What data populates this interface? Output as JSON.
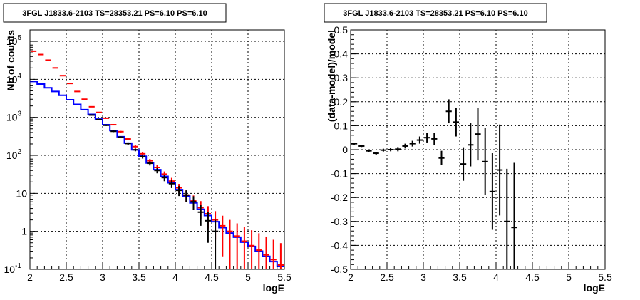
{
  "chart_data": [
    {
      "type": "line",
      "title": "3FGL J1833.6-2103 TS=28353.21 PS=6.10 PS=6.10",
      "xlabel": "logE",
      "ylabel": "Nb of counts",
      "xlim": [
        2,
        5.5
      ],
      "ylim": [
        0.1,
        200000
      ],
      "yscale": "log",
      "grid": true,
      "x_ticks": [
        "2",
        "2.5",
        "3",
        "3.5",
        "4",
        "4.5",
        "5",
        "5.5"
      ],
      "y_ticks": [
        {
          "value": 0.1,
          "label": "10",
          "exp": "-1"
        },
        {
          "value": 1,
          "label": "1",
          "exp": ""
        },
        {
          "value": 10,
          "label": "10",
          "exp": ""
        },
        {
          "value": 100,
          "label": "10",
          "exp": "2"
        },
        {
          "value": 1000,
          "label": "10",
          "exp": "3"
        },
        {
          "value": 10000,
          "label": "10",
          "exp": "4"
        },
        {
          "value": 100000,
          "label": "10",
          "exp": "5"
        }
      ],
      "bin_width": 0.1,
      "series": [
        {
          "color": "#0000ff",
          "style": "step",
          "x": [
            2.05,
            2.15,
            2.25,
            2.35,
            2.45,
            2.55,
            2.65,
            2.75,
            2.85,
            2.95,
            3.05,
            3.15,
            3.25,
            3.35,
            3.45,
            3.55,
            3.65,
            3.75,
            3.85,
            3.95,
            4.05,
            4.15,
            4.25,
            4.35,
            4.45,
            4.55,
            4.65,
            4.75,
            4.85,
            4.95,
            5.05,
            5.15,
            5.25,
            5.35,
            5.45
          ],
          "y": [
            8800,
            7500,
            6000,
            4800,
            3800,
            2900,
            2200,
            1600,
            1200,
            900,
            640,
            450,
            310,
            210,
            140,
            95,
            63,
            42,
            28,
            19,
            12.5,
            8.5,
            5.6,
            3.8,
            2.6,
            1.8,
            1.25,
            0.9,
            0.7,
            0.52,
            0.4,
            0.3,
            0.22,
            0.16,
            0.12
          ]
        },
        {
          "color": "#ff0000",
          "style": "errorbar",
          "x": [
            2.05,
            2.15,
            2.25,
            2.35,
            2.45,
            2.55,
            2.65,
            2.75,
            2.85,
            2.95,
            3.05,
            3.15,
            3.25,
            3.35,
            3.45,
            3.55,
            3.65,
            3.75,
            3.85,
            3.95,
            4.05,
            4.15,
            4.25,
            4.35,
            4.45,
            4.55,
            4.65,
            4.75,
            4.85,
            4.95,
            5.05,
            5.15,
            5.25,
            5.35,
            5.45
          ],
          "y": [
            55000,
            45000,
            32000,
            20000,
            12500,
            7800,
            4800,
            3000,
            1900,
            1350,
            950,
            640,
            420,
            270,
            170,
            110,
            72,
            48,
            32,
            21,
            14,
            9,
            6.3,
            4.2,
            2.9,
            2.0,
            1.4,
            1.0,
            0.75,
            0.55,
            0.42,
            0.32,
            0.24,
            0.18,
            0.13
          ],
          "err": [
            234,
            212,
            179,
            141,
            112,
            88,
            69,
            55,
            44,
            37,
            31,
            25,
            20,
            16,
            13,
            10,
            8.5,
            7,
            5.7,
            4.6,
            3.7,
            3,
            2.5,
            2.05,
            1.7,
            1.4,
            1.18,
            1.0,
            0.87,
            0.74,
            0.65,
            0.57,
            0.49,
            0.42,
            0.36
          ]
        },
        {
          "color": "#000000",
          "style": "errorbar",
          "x": [
            2.85,
            2.95,
            3.05,
            3.15,
            3.25,
            3.35,
            3.45,
            3.55,
            3.65,
            3.75,
            3.85,
            3.95,
            4.05,
            4.15,
            4.25,
            4.35,
            4.45,
            4.55
          ],
          "y": [
            1150,
            870,
            620,
            430,
            300,
            205,
            140,
            92,
            62,
            40,
            26,
            18,
            12,
            9,
            6,
            3.2,
            1.9,
            1.0
          ],
          "err": [
            34,
            29,
            25,
            21,
            17,
            14,
            12,
            9.6,
            7.9,
            6.3,
            5.1,
            4.2,
            3.5,
            3,
            2.4,
            1.8,
            1.4,
            1.0
          ]
        }
      ]
    },
    {
      "type": "scatter",
      "title": "3FGL J1833.6-2103 TS=28353.21 PS=6.10 PS=6.10",
      "xlabel": "logE",
      "ylabel": "(data-model)/model",
      "xlim": [
        2,
        5.5
      ],
      "ylim": [
        -0.5,
        0.5
      ],
      "grid": true,
      "x_ticks": [
        "2",
        "2.5",
        "3",
        "3.5",
        "4",
        "4.5",
        "5",
        "5.5"
      ],
      "y_ticks": [
        "-0.5",
        "-0.4",
        "-0.3",
        "-0.2",
        "-0.1",
        "0",
        "0.1",
        "0.2",
        "0.3",
        "0.4",
        "0.5"
      ],
      "bin_width": 0.1,
      "series": [
        {
          "color": "#000000",
          "style": "errorbar",
          "x": [
            2.05,
            2.15,
            2.25,
            2.35,
            2.45,
            2.55,
            2.65,
            2.75,
            2.85,
            2.95,
            3.05,
            3.15,
            3.25,
            3.35,
            3.45,
            3.55,
            3.65,
            3.75,
            3.85,
            3.95,
            4.05,
            4.15,
            4.25
          ],
          "y": [
            0.025,
            0.015,
            -0.005,
            -0.015,
            -0.002,
            0.0,
            0.002,
            0.015,
            0.025,
            0.04,
            0.05,
            0.045,
            -0.035,
            0.16,
            0.115,
            -0.06,
            0.02,
            0.065,
            -0.05,
            -0.175,
            -0.085,
            -0.3,
            -0.325
          ],
          "err": [
            0.004,
            0.004,
            0.005,
            0.006,
            0.006,
            0.007,
            0.009,
            0.01,
            0.012,
            0.015,
            0.02,
            0.025,
            0.03,
            0.05,
            0.06,
            0.07,
            0.09,
            0.11,
            0.14,
            0.16,
            0.19,
            0.22,
            0.27
          ]
        }
      ]
    }
  ]
}
